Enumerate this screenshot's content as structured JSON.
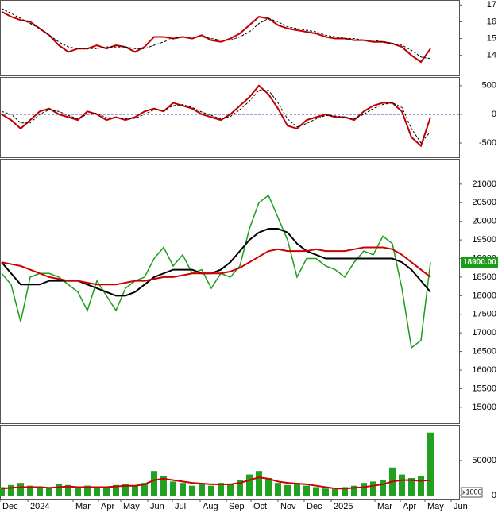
{
  "chart_data": [
    {
      "type": "line",
      "ylim": [
        12.8,
        17.3
      ],
      "yticks": [
        14,
        15,
        16,
        17
      ],
      "series": [
        {
          "color": "#c00000",
          "values": [
            16.6,
            16.3,
            16.1,
            16.0,
            15.6,
            15.2,
            14.6,
            14.2,
            14.4,
            14.4,
            14.6,
            14.4,
            14.6,
            14.5,
            14.2,
            14.5,
            15.1,
            15.1,
            15.0,
            15.1,
            15.0,
            15.2,
            14.9,
            14.8,
            15.0,
            15.3,
            15.8,
            16.3,
            16.2,
            15.8,
            15.6,
            15.5,
            15.4,
            15.3,
            15.1,
            15.0,
            15.0,
            14.9,
            14.9,
            14.8,
            14.8,
            14.7,
            14.5,
            14.0,
            13.6,
            14.4
          ]
        },
        {
          "color": "#000000",
          "dashed": true,
          "values": [
            16.8,
            16.5,
            16.2,
            15.9,
            15.6,
            15.2,
            14.8,
            14.5,
            14.4,
            14.4,
            14.4,
            14.5,
            14.5,
            14.5,
            14.4,
            14.4,
            14.6,
            14.8,
            15.0,
            15.1,
            15.1,
            15.1,
            15.0,
            14.9,
            14.9,
            15.1,
            15.4,
            15.9,
            16.2,
            16.0,
            15.7,
            15.6,
            15.5,
            15.4,
            15.2,
            15.1,
            15.0,
            15.0,
            14.9,
            14.9,
            14.8,
            14.7,
            14.6,
            14.3,
            13.9,
            13.8
          ]
        }
      ]
    },
    {
      "type": "line",
      "ylim": [
        -750,
        650
      ],
      "yticks": [
        500,
        0,
        -500
      ],
      "zero_line": true,
      "series": [
        {
          "color": "#c00000",
          "values": [
            0,
            -100,
            -250,
            -100,
            50,
            100,
            0,
            -50,
            -100,
            50,
            0,
            -100,
            -50,
            -100,
            -50,
            50,
            100,
            50,
            200,
            150,
            100,
            0,
            -50,
            -100,
            0,
            150,
            300,
            500,
            350,
            100,
            -200,
            -250,
            -100,
            -50,
            0,
            -50,
            -50,
            -100,
            50,
            150,
            200,
            200,
            50,
            -400,
            -550,
            -50
          ]
        },
        {
          "color": "#000000",
          "dashed": true,
          "values": [
            50,
            0,
            -150,
            -150,
            0,
            80,
            50,
            -20,
            -80,
            0,
            20,
            -60,
            -60,
            -80,
            -70,
            0,
            80,
            70,
            150,
            170,
            120,
            40,
            -20,
            -80,
            -40,
            80,
            230,
            420,
            420,
            200,
            -80,
            -220,
            -160,
            -80,
            -20,
            -30,
            -50,
            -80,
            0,
            100,
            170,
            200,
            120,
            -250,
            -500,
            -300
          ]
        }
      ]
    },
    {
      "type": "line",
      "ylim": [
        14570,
        21680
      ],
      "yticks": [
        15000,
        15500,
        16000,
        16500,
        17000,
        17500,
        18000,
        18500,
        19000,
        19500,
        20000,
        20500,
        21000
      ],
      "last_price": {
        "value": 18900,
        "label": "18900.00"
      },
      "series": [
        {
          "color": "#1a9e1a",
          "values": [
            18600,
            18300,
            17300,
            18500,
            18600,
            18600,
            18500,
            18300,
            18100,
            17600,
            18400,
            18000,
            17600,
            18200,
            18400,
            18500,
            19000,
            19300,
            18800,
            19100,
            18600,
            18700,
            18200,
            18600,
            18500,
            18800,
            19800,
            20500,
            20700,
            20100,
            19500,
            18500,
            19000,
            19000,
            18800,
            18700,
            18500,
            18900,
            19200,
            19100,
            19600,
            19400,
            18200,
            16600,
            16800,
            18900
          ]
        },
        {
          "color": "#000000",
          "values": [
            18900,
            18600,
            18300,
            18300,
            18300,
            18400,
            18400,
            18400,
            18400,
            18300,
            18200,
            18100,
            18000,
            18000,
            18100,
            18300,
            18500,
            18600,
            18700,
            18700,
            18700,
            18600,
            18600,
            18700,
            18900,
            19200,
            19500,
            19700,
            19800,
            19800,
            19700,
            19400,
            19200,
            19100,
            19000,
            19000,
            19000,
            19000,
            19000,
            19000,
            19000,
            19000,
            18900,
            18700,
            18400,
            18100
          ]
        },
        {
          "color": "#cc0000",
          "values": [
            18900,
            18850,
            18800,
            18700,
            18600,
            18500,
            18450,
            18400,
            18400,
            18350,
            18300,
            18300,
            18300,
            18350,
            18400,
            18400,
            18450,
            18500,
            18500,
            18550,
            18600,
            18600,
            18600,
            18600,
            18650,
            18750,
            18900,
            19050,
            19200,
            19250,
            19200,
            19200,
            19200,
            19250,
            19200,
            19200,
            19200,
            19250,
            19300,
            19300,
            19300,
            19250,
            19100,
            18900,
            18700,
            18500
          ]
        }
      ]
    },
    {
      "type": "bar",
      "ylim": [
        -4500,
        101000
      ],
      "yticks": [
        0,
        50000
      ],
      "unit_label": "x1000",
      "color": "#22a022",
      "values": [
        12000,
        15000,
        18000,
        14000,
        13000,
        12000,
        16000,
        15000,
        12000,
        14000,
        13000,
        12000,
        15000,
        16000,
        14000,
        18000,
        35000,
        28000,
        20000,
        18000,
        14000,
        16000,
        14000,
        18000,
        16000,
        22000,
        30000,
        35000,
        25000,
        18000,
        15000,
        16000,
        14000,
        12000,
        10000,
        9000,
        12000,
        14000,
        18000,
        20000,
        22000,
        40000,
        30000,
        25000,
        28000,
        90000
      ],
      "series": [
        {
          "color": "#cc0000",
          "values": [
            10000,
            11000,
            12000,
            12000,
            12000,
            11000,
            12000,
            13000,
            12000,
            12000,
            12000,
            12000,
            13000,
            14000,
            14000,
            16000,
            22000,
            24000,
            22000,
            20000,
            18000,
            17000,
            16000,
            16000,
            16000,
            18000,
            22000,
            26000,
            24000,
            20000,
            18000,
            17000,
            16000,
            14000,
            12000,
            10000,
            10000,
            11000,
            12000,
            14000,
            16000,
            20000,
            22000,
            22000,
            21000,
            22000
          ]
        }
      ],
      "x_labels": [
        "Dec",
        "2024",
        "Mar",
        "Apr",
        "May",
        "Jun",
        "Jul",
        "Aug",
        "Sep",
        "Oct",
        "Nov",
        "Dec",
        "2025",
        "Mar",
        "Apr",
        "May",
        "Jun"
      ]
    }
  ]
}
